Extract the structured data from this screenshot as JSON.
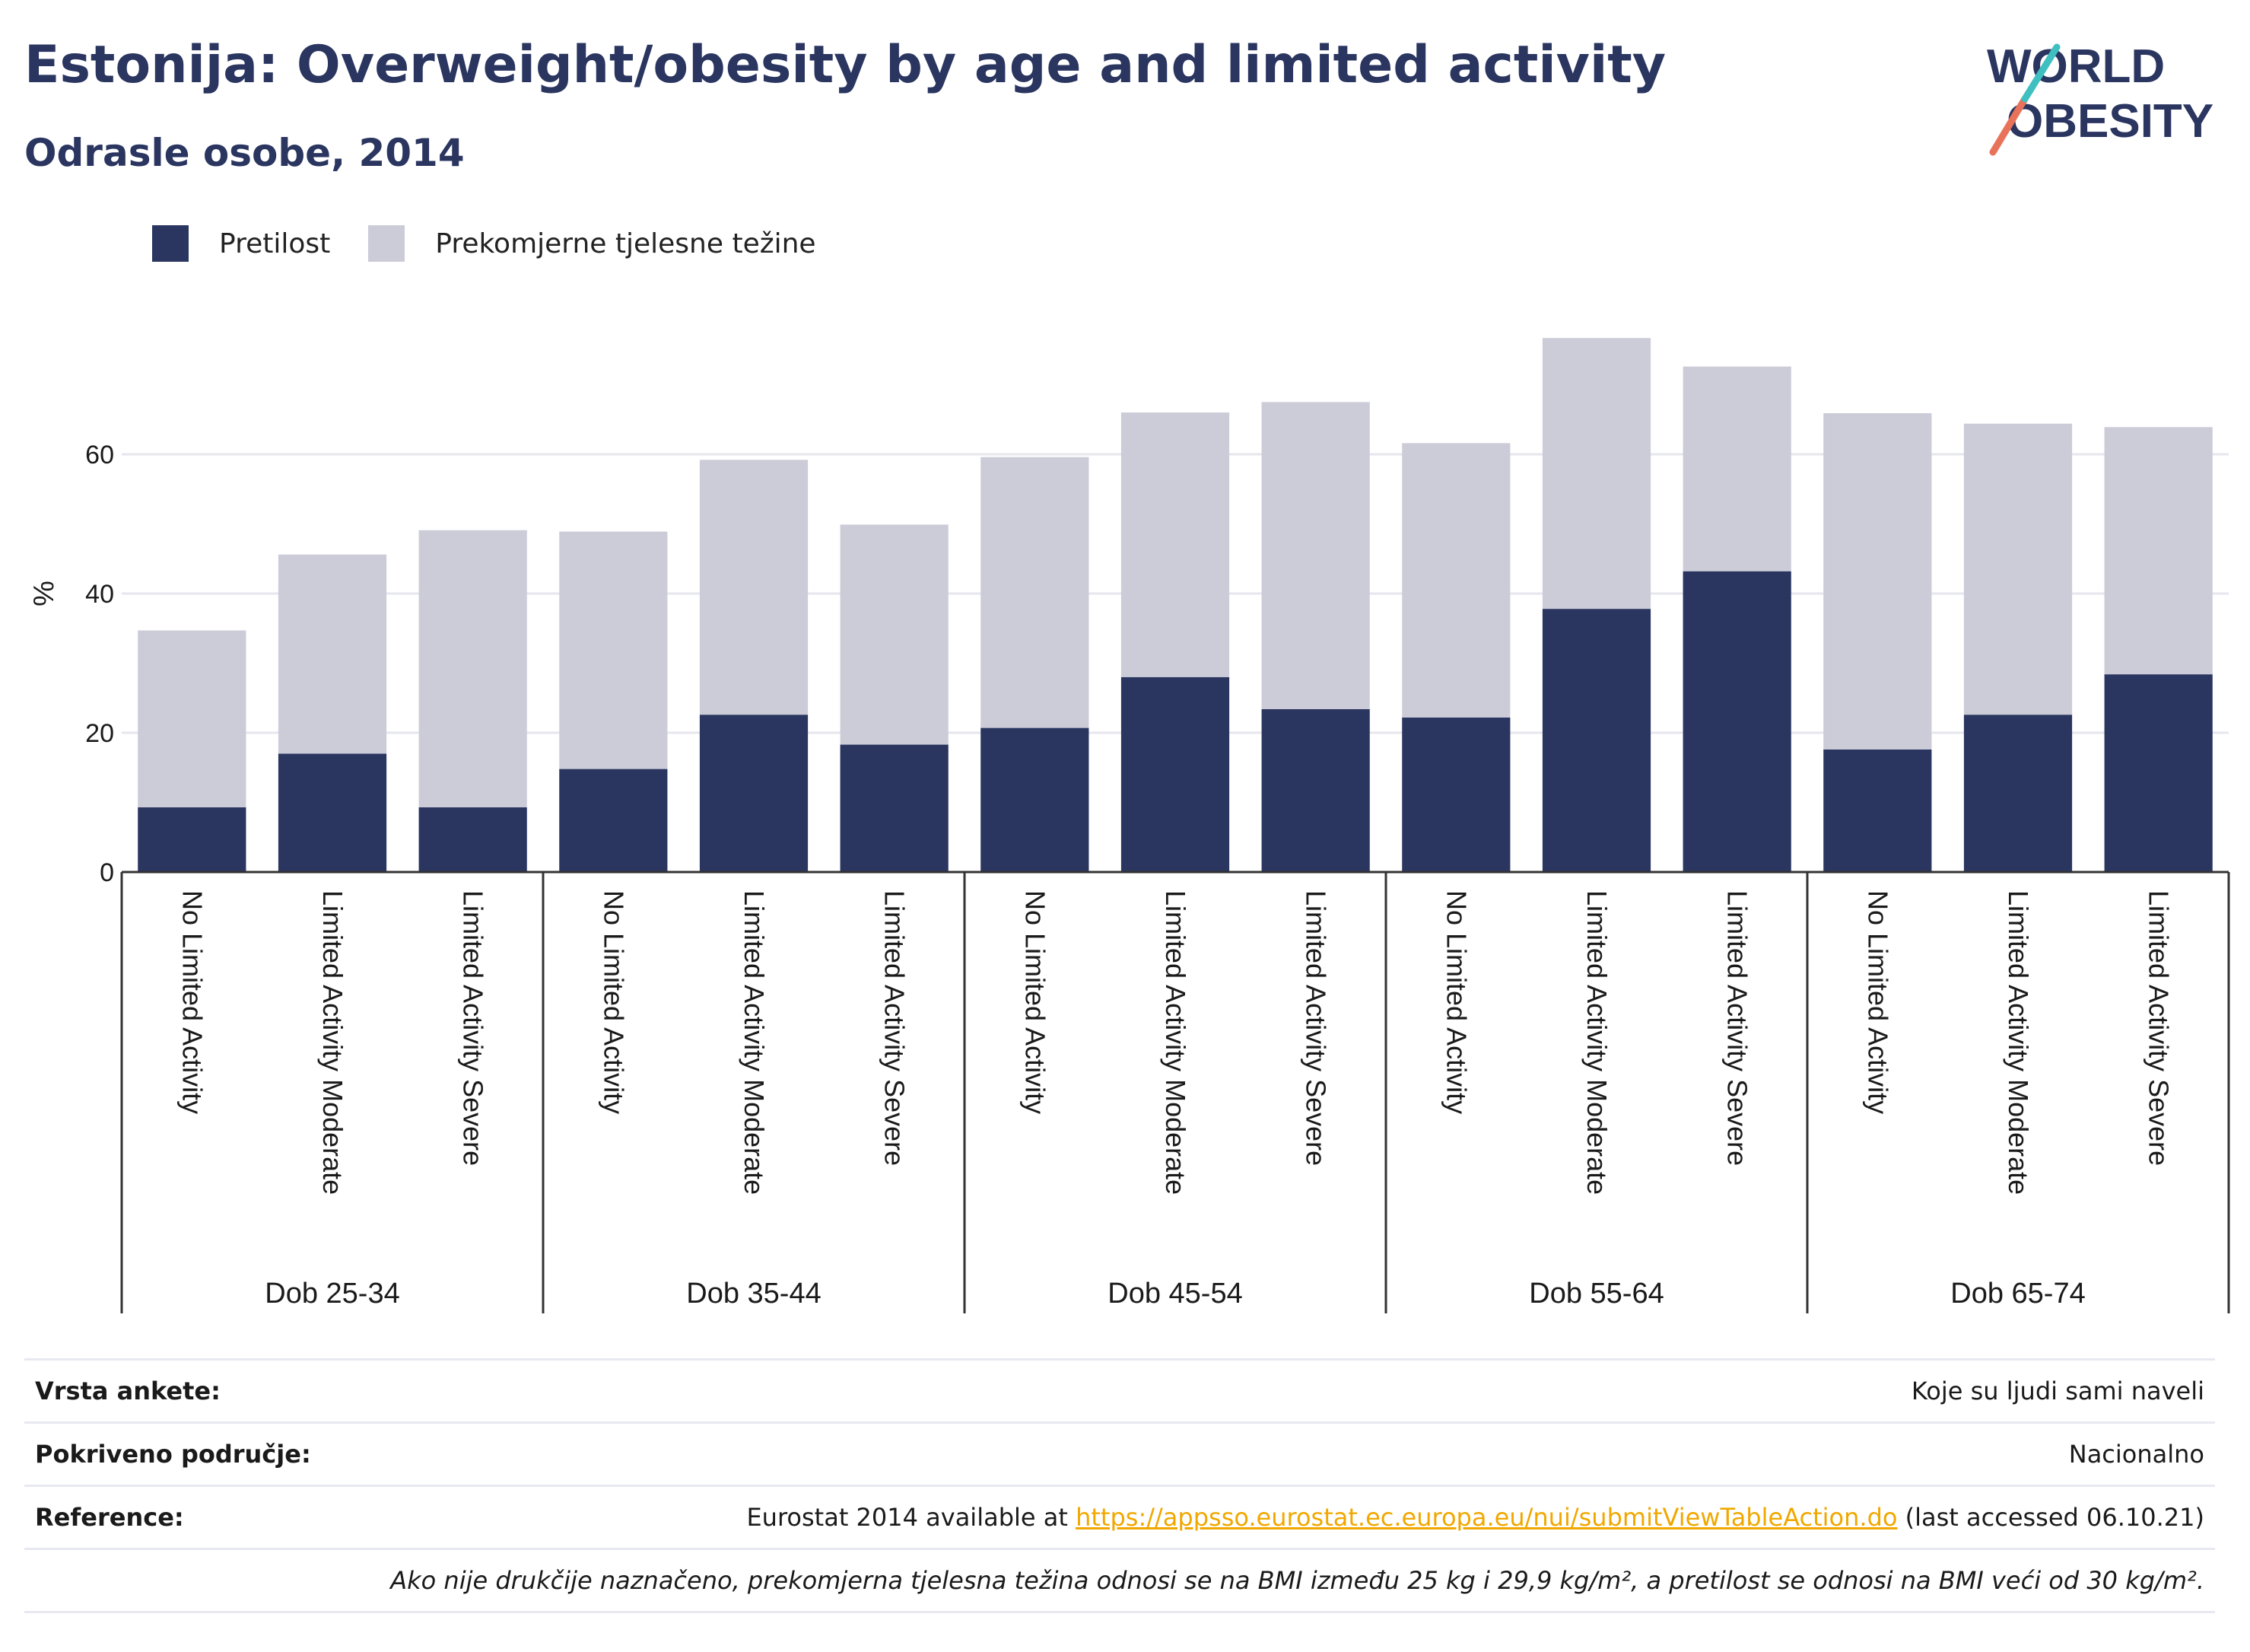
{
  "title": "Estonija: Overweight/obesity by age and limited activity",
  "subtitle": "Odrasle osobe, 2014",
  "logo": {
    "line1": "WORLD",
    "line2": "OBESITY"
  },
  "colors": {
    "obesity": "#2a3560",
    "overweight": "#cbccd8",
    "title": "#2a3560",
    "link": "#f0a800"
  },
  "legend": [
    {
      "label": "Pretilost",
      "color": "#2a3560"
    },
    {
      "label": "Prekomjerne tjelesne težine",
      "color": "#cbccd8"
    }
  ],
  "chart_data": {
    "type": "bar",
    "stacked": true,
    "ylabel": "%",
    "ylim": [
      0,
      80
    ],
    "yticks": [
      0,
      20,
      40,
      60
    ],
    "grid": true,
    "groups": [
      "Dob 25-34",
      "Dob 35-44",
      "Dob 45-54",
      "Dob 55-64",
      "Dob 65-74"
    ],
    "categories": [
      "No Limited Activity",
      "Limited Activity Moderate",
      "Limited Activity Severe",
      "No Limited Activity",
      "Limited Activity Moderate",
      "Limited Activity Severe",
      "No Limited Activity",
      "Limited Activity Moderate",
      "Limited Activity Severe",
      "No Limited Activity",
      "Limited Activity Moderate",
      "Limited Activity Severe",
      "No Limited Activity",
      "Limited Activity Moderate",
      "Limited Activity Severe"
    ],
    "series": [
      {
        "name": "Pretilost",
        "values": [
          9.3,
          17.0,
          9.3,
          14.8,
          22.6,
          18.3,
          20.7,
          28.0,
          23.4,
          22.2,
          37.8,
          43.2,
          17.6,
          22.6,
          28.4
        ]
      },
      {
        "name": "Prekomjerne tjelesne težine",
        "values": [
          25.4,
          28.6,
          39.8,
          34.1,
          36.6,
          31.6,
          38.9,
          38.0,
          44.1,
          39.4,
          38.9,
          29.4,
          48.3,
          41.8,
          35.5
        ]
      }
    ]
  },
  "meta": {
    "survey_label": "Vrsta ankete:",
    "survey_value": "Koje su ljudi sami naveli",
    "coverage_label": "Pokriveno područje:",
    "coverage_value": "Nacionalno",
    "reference_label": "Reference:",
    "reference_prefix": "Eurostat 2014 available at ",
    "reference_link": "https://appsso.eurostat.ec.europa.eu/nui/submitViewTableAction.do",
    "reference_suffix": " (last accessed 06.10.21)",
    "note": "Ako nije drukčije naznačeno, prekomjerna tjelesna težina odnosi se na BMI između 25 kg i 29,9 kg/m², a pretilost se odnosi na BMI veći od 30 kg/m²."
  }
}
